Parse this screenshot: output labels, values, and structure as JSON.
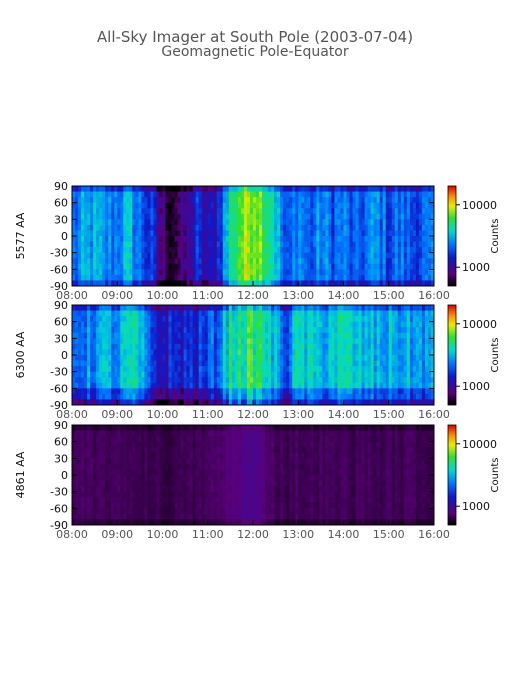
{
  "figure": {
    "title": "All-Sky Imager at South Pole (2003-07-04)",
    "subtitle": "Geomagnetic Pole-Equator"
  },
  "chart_data": [
    {
      "type": "heatmap",
      "ylabel": "5577 AA",
      "x_ticks": [
        "08:00",
        "09:00",
        "10:00",
        "11:00",
        "12:00",
        "13:00",
        "14:00",
        "15:00",
        "16:00"
      ],
      "x_range_hours": [
        8,
        16
      ],
      "y_ticks": [
        "90",
        "60",
        "30",
        "0",
        "-30",
        "-60",
        "-90"
      ],
      "y_range": [
        -90,
        90
      ],
      "colorbar": {
        "label": "Counts",
        "ticks": [
          "10000",
          "1000"
        ],
        "range": [
          500,
          20000
        ],
        "scale": "log"
      },
      "profile": {
        "time_hours": [
          8.0,
          8.25,
          8.5,
          8.75,
          9.0,
          9.25,
          9.5,
          9.75,
          10.0,
          10.25,
          10.5,
          10.75,
          11.0,
          11.25,
          11.5,
          11.75,
          12.0,
          12.25,
          12.5,
          12.75,
          13.0,
          13.25,
          13.5,
          13.75,
          14.0,
          14.25,
          14.5,
          14.75,
          15.0,
          15.25,
          15.5,
          15.75,
          16.0
        ],
        "level": [
          0.38,
          0.45,
          0.48,
          0.42,
          0.44,
          0.5,
          0.4,
          0.3,
          0.1,
          0.08,
          0.12,
          0.3,
          0.18,
          0.32,
          0.6,
          0.72,
          0.78,
          0.7,
          0.55,
          0.3,
          0.48,
          0.36,
          0.44,
          0.38,
          0.42,
          0.33,
          0.4,
          0.45,
          0.36,
          0.4,
          0.35,
          0.38,
          0.36
        ]
      }
    },
    {
      "type": "heatmap",
      "ylabel": "6300 AA",
      "x_ticks": [
        "08:00",
        "09:00",
        "10:00",
        "11:00",
        "12:00",
        "13:00",
        "14:00",
        "15:00",
        "16:00"
      ],
      "x_range_hours": [
        8,
        16
      ],
      "y_ticks": [
        "90",
        "60",
        "30",
        "0",
        "-30",
        "-60",
        "-90"
      ],
      "y_range": [
        -90,
        90
      ],
      "colorbar": {
        "label": "Counts",
        "ticks": [
          "10000",
          "1000"
        ],
        "range": [
          500,
          20000
        ],
        "scale": "log"
      },
      "profile": {
        "time_hours": [
          8.0,
          8.25,
          8.5,
          8.75,
          9.0,
          9.25,
          9.5,
          9.75,
          10.0,
          10.25,
          10.5,
          10.75,
          11.0,
          11.25,
          11.5,
          11.75,
          12.0,
          12.25,
          12.5,
          12.75,
          13.0,
          13.25,
          13.5,
          13.75,
          14.0,
          14.25,
          14.5,
          14.75,
          15.0,
          15.25,
          15.5,
          15.75,
          16.0
        ],
        "level": [
          0.4,
          0.42,
          0.45,
          0.48,
          0.44,
          0.55,
          0.5,
          0.32,
          0.26,
          0.28,
          0.3,
          0.3,
          0.33,
          0.42,
          0.6,
          0.62,
          0.64,
          0.6,
          0.48,
          0.38,
          0.55,
          0.52,
          0.5,
          0.55,
          0.54,
          0.52,
          0.5,
          0.48,
          0.5,
          0.49,
          0.47,
          0.46,
          0.45
        ]
      }
    },
    {
      "type": "heatmap",
      "ylabel": "4861 AA",
      "x_ticks": [
        "08:00",
        "09:00",
        "10:00",
        "11:00",
        "12:00",
        "13:00",
        "14:00",
        "15:00",
        "16:00"
      ],
      "x_range_hours": [
        8,
        16
      ],
      "y_ticks": [
        "90",
        "60",
        "30",
        "0",
        "-30",
        "-60",
        "-90"
      ],
      "y_range": [
        -90,
        90
      ],
      "colorbar": {
        "label": "Counts",
        "ticks": [
          "10000",
          "1000"
        ],
        "range": [
          500,
          20000
        ],
        "scale": "log"
      },
      "profile": {
        "time_hours": [
          8.0,
          8.25,
          8.5,
          8.75,
          9.0,
          9.25,
          9.5,
          9.75,
          10.0,
          10.25,
          10.5,
          10.75,
          11.0,
          11.25,
          11.5,
          11.75,
          12.0,
          12.25,
          12.5,
          12.75,
          13.0,
          13.25,
          13.5,
          13.75,
          14.0,
          14.25,
          14.5,
          14.75,
          15.0,
          15.25,
          15.5,
          15.75,
          16.0
        ],
        "level": [
          0.08,
          0.09,
          0.08,
          0.09,
          0.08,
          0.09,
          0.08,
          0.08,
          0.07,
          0.07,
          0.08,
          0.08,
          0.09,
          0.1,
          0.12,
          0.14,
          0.15,
          0.12,
          0.09,
          0.08,
          0.09,
          0.08,
          0.09,
          0.08,
          0.09,
          0.08,
          0.09,
          0.08,
          0.09,
          0.08,
          0.09,
          0.08,
          0.08
        ]
      }
    }
  ]
}
